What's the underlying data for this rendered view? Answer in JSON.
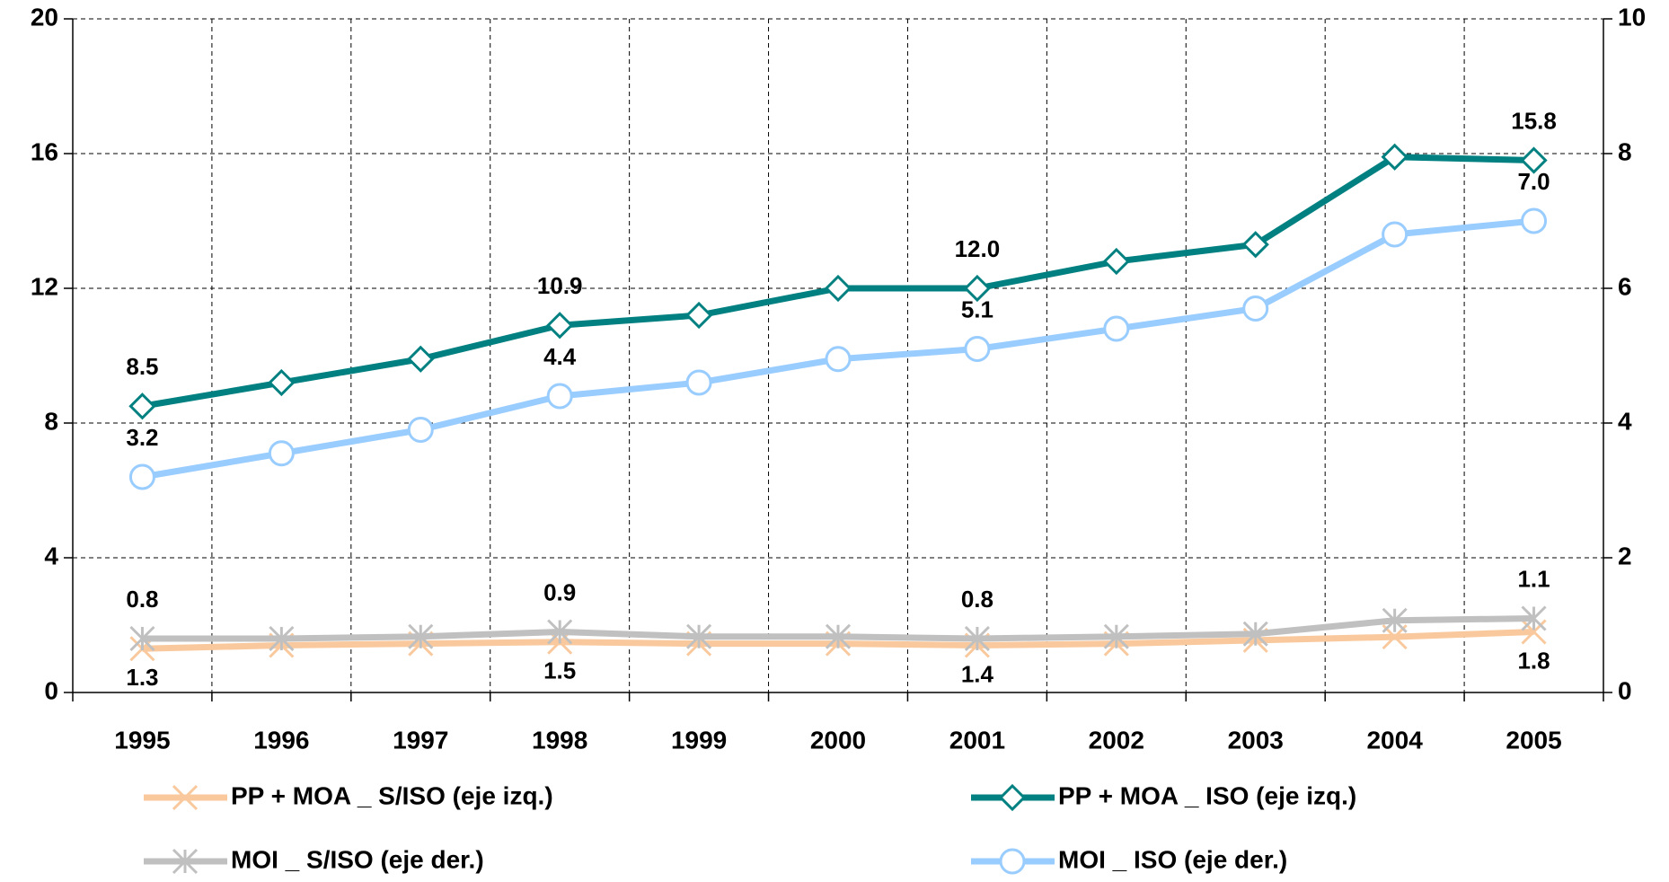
{
  "chart_data": {
    "type": "line",
    "categories": [
      "1995",
      "1996",
      "1997",
      "1998",
      "1999",
      "2000",
      "2001",
      "2002",
      "2003",
      "2004",
      "2005"
    ],
    "ylim": [
      0,
      20
    ],
    "yticks": [
      0,
      4,
      8,
      12,
      16,
      20
    ],
    "y2lim": [
      0,
      10
    ],
    "y2ticks": [
      0,
      2,
      4,
      6,
      8,
      10
    ],
    "grid": true,
    "series": [
      {
        "name": "PP + MOA _ S/ISO (eje izq.)",
        "color": "#f9c99d",
        "marker": "x",
        "label_side": "below",
        "values": [
          1.3,
          1.4,
          1.45,
          1.5,
          1.45,
          1.45,
          1.4,
          1.45,
          1.55,
          1.65,
          1.8
        ],
        "value_labels": [
          "1.3",
          null,
          null,
          "1.5",
          null,
          null,
          "1.4",
          null,
          null,
          null,
          "1.8"
        ]
      },
      {
        "name": "PP + MOA _ ISO (eje izq.)",
        "color": "#008080",
        "marker": "diamond",
        "label_side": "above",
        "values": [
          8.5,
          9.2,
          9.9,
          10.9,
          11.2,
          12.0,
          12.0,
          12.8,
          13.3,
          15.9,
          15.8
        ],
        "value_labels": [
          "8.5",
          null,
          null,
          "10.9",
          null,
          null,
          "12.0",
          null,
          null,
          null,
          "15.8"
        ]
      },
      {
        "name": "MOI _ S/ISO (eje der.)",
        "color": "#c0c0c0",
        "marker": "asterisk",
        "axis": "y2",
        "label_side": "above",
        "values": [
          0.8,
          0.8,
          0.83,
          0.9,
          0.83,
          0.83,
          0.8,
          0.83,
          0.87,
          1.07,
          1.1
        ],
        "value_labels": [
          "0.8",
          null,
          null,
          "0.9",
          null,
          null,
          "0.8",
          null,
          null,
          null,
          "1.1"
        ]
      },
      {
        "name": "MOI _ ISO (eje der.)",
        "color": "#99ccff",
        "marker": "circle",
        "axis": "y2",
        "label_side": "above",
        "values": [
          3.2,
          3.55,
          3.9,
          4.4,
          4.6,
          4.95,
          5.1,
          5.4,
          5.7,
          6.8,
          7.0
        ],
        "value_labels": [
          "3.2",
          null,
          null,
          "4.4",
          null,
          null,
          "5.1",
          null,
          null,
          null,
          "7.0"
        ]
      }
    ]
  }
}
